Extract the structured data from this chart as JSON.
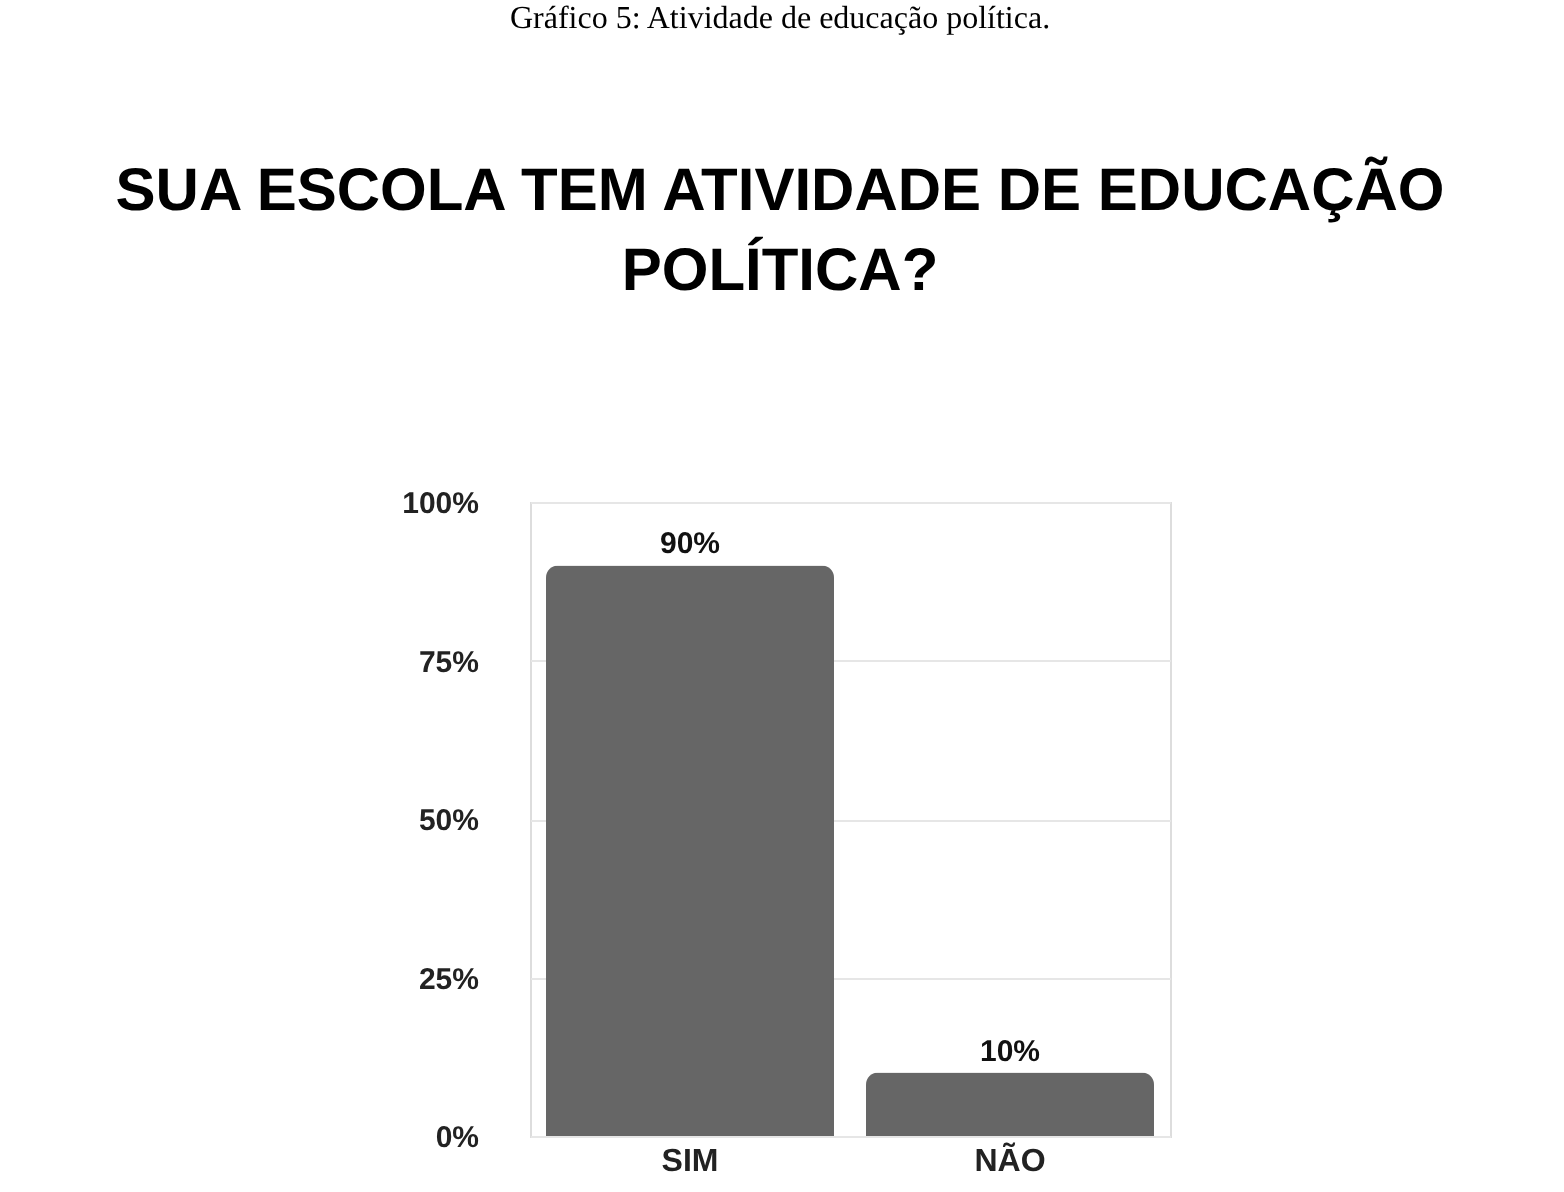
{
  "chart_data": {
    "type": "bar",
    "title": "SUA ESCOLA TEM ATIVIDADE DE EDUCAÇÃO POLÍTICA?",
    "annotations": [
      "Gráfico 5: Atividade de educação política."
    ],
    "categories": [
      "SIM",
      "NÃO"
    ],
    "values": [
      90,
      10
    ],
    "value_labels": [
      "90%",
      "10%"
    ],
    "color": "#666666",
    "ylim": [
      0,
      100
    ],
    "yticks": [
      {
        "value": 0,
        "label": "0%"
      },
      {
        "value": 25,
        "label": "25%"
      },
      {
        "value": 50,
        "label": "50%"
      },
      {
        "value": 75,
        "label": "75%"
      },
      {
        "value": 100,
        "label": "100%"
      }
    ],
    "grid": "y"
  }
}
